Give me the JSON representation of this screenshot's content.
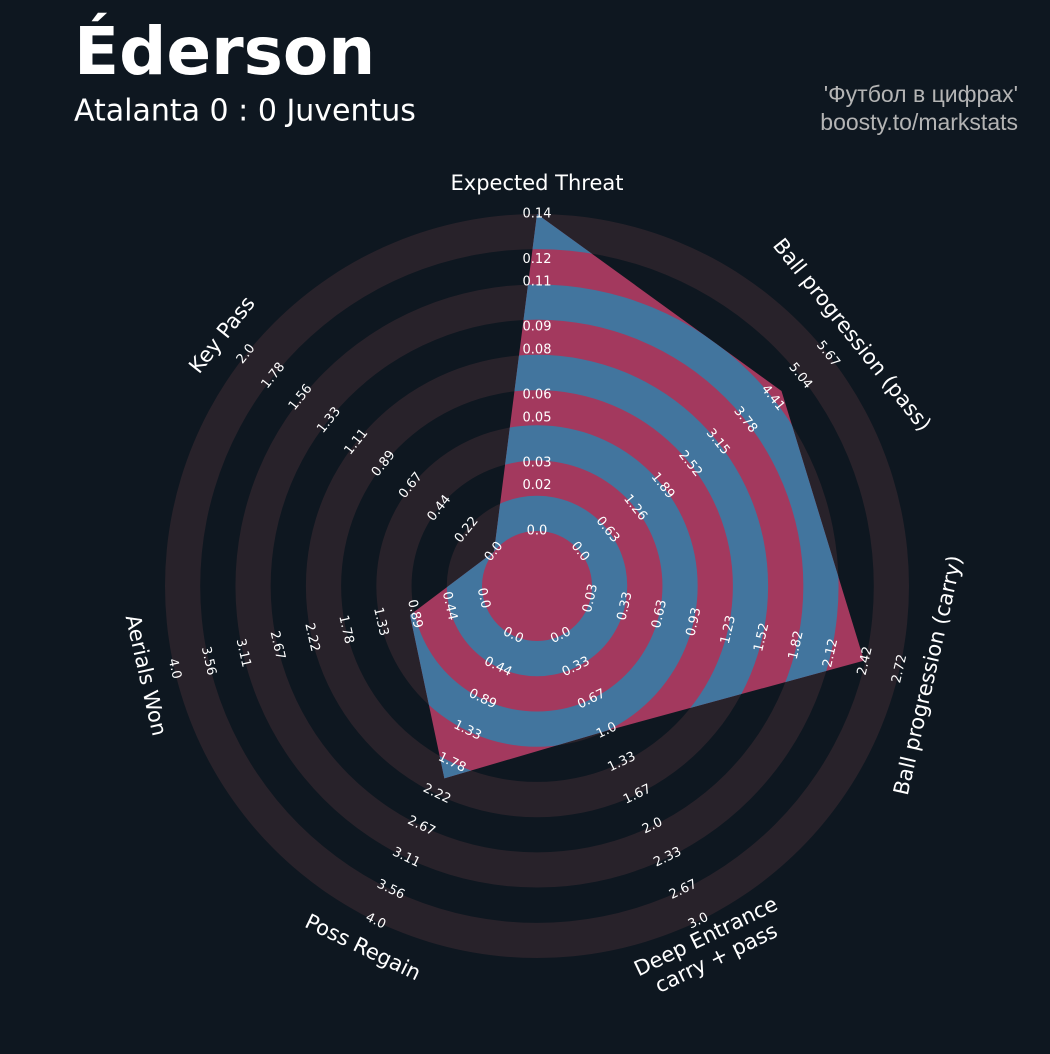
{
  "chart_data": {
    "type": "radar",
    "title": "Éderson",
    "subtitle": "Atalanta 0 : 0 Juventus",
    "credits": [
      "'Футбол в цифрах'",
      "boosty.to/markstats"
    ],
    "params": [
      {
        "label": [
          "Expected Threat"
        ],
        "lim": [
          0,
          0.14
        ],
        "ticks": [
          {
            "value": 0,
            "label": "0.0"
          },
          0.02,
          0.03,
          0.05,
          0.06,
          0.08,
          0.09,
          0.11,
          0.12,
          0.14
        ]
      },
      {
        "label": [
          "Ball progression (pass)"
        ],
        "lim": [
          0,
          5.67
        ],
        "ticks": [
          {
            "value": 0,
            "label": "0.0"
          },
          0.63,
          1.26,
          1.89,
          2.52,
          3.15,
          3.78,
          4.41,
          5.04,
          5.67
        ]
      },
      {
        "label": [
          "Ball progression (carry)"
        ],
        "lim": [
          0.03,
          2.72
        ],
        "ticks": [
          0.03,
          0.33,
          0.63,
          0.93,
          1.23,
          1.52,
          1.82,
          2.12,
          2.42,
          2.72
        ]
      },
      {
        "label": [
          "Deep Entrance",
          "carry + pass"
        ],
        "lim": [
          0,
          3
        ],
        "ticks": [
          {
            "value": 0,
            "label": "0.0"
          },
          0.33,
          0.67,
          {
            "value": 1,
            "label": "1.0"
          },
          1.33,
          1.67,
          {
            "value": 2,
            "label": "2.0"
          },
          2.33,
          2.67,
          {
            "value": 3,
            "label": "3.0"
          }
        ]
      },
      {
        "label": [
          "Poss Regain"
        ],
        "lim": [
          0,
          4
        ],
        "ticks": [
          {
            "value": 0,
            "label": "0.0"
          },
          0.44,
          0.89,
          1.33,
          1.78,
          2.22,
          2.67,
          3.11,
          3.56,
          {
            "value": 4,
            "label": "4.0"
          }
        ]
      },
      {
        "label": [
          "Aerials Won"
        ],
        "lim": [
          0,
          4
        ],
        "ticks": [
          {
            "value": 0,
            "label": "0.0"
          },
          0.44,
          0.89,
          1.33,
          1.78,
          2.22,
          2.67,
          3.11,
          3.56,
          {
            "value": 4,
            "label": "4.0"
          }
        ]
      },
      {
        "label": [
          "Key Pass"
        ],
        "lim": [
          0,
          2
        ],
        "ticks": [
          {
            "value": 0,
            "label": "0.0"
          },
          0.22,
          0.44,
          0.67,
          0.89,
          1.11,
          1.33,
          1.56,
          1.78,
          {
            "value": 2,
            "label": "2.0"
          }
        ]
      }
    ],
    "values": [
      0.14,
      4.61,
      2.41,
      1.0,
      2.0,
      0.95,
      0
    ],
    "colors": {
      "area": "#a3395e",
      "area_alt": "#42759e",
      "rings": "#28222a"
    }
  }
}
